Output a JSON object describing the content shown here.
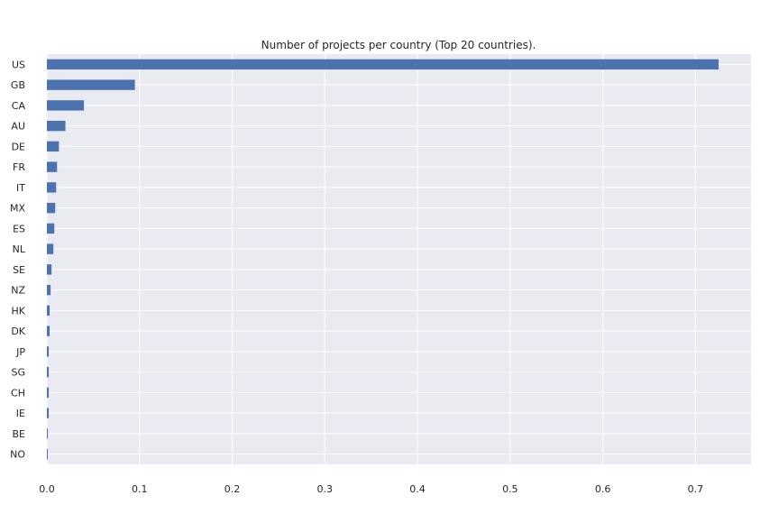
{
  "chart_data": {
    "type": "bar",
    "orientation": "horizontal",
    "title": "Number of projects per country (Top 20 countries).",
    "xlabel": "",
    "ylabel": "",
    "xlim": [
      0,
      0.76
    ],
    "xticks": [
      "0.0",
      "0.1",
      "0.2",
      "0.3",
      "0.4",
      "0.5",
      "0.6",
      "0.7"
    ],
    "grid": true,
    "legend": "none",
    "categories": [
      "US",
      "GB",
      "CA",
      "AU",
      "DE",
      "FR",
      "IT",
      "MX",
      "ES",
      "NL",
      "SE",
      "NZ",
      "HK",
      "DK",
      "JP",
      "SG",
      "CH",
      "IE",
      "BE",
      "NO"
    ],
    "values": [
      0.725,
      0.095,
      0.04,
      0.02,
      0.013,
      0.011,
      0.01,
      0.009,
      0.008,
      0.007,
      0.005,
      0.004,
      0.003,
      0.003,
      0.002,
      0.002,
      0.002,
      0.002,
      0.001,
      0.001
    ],
    "colors": {
      "bar": "#4c72b0",
      "background": "#eaeaf2",
      "grid": "#ffffff"
    }
  }
}
